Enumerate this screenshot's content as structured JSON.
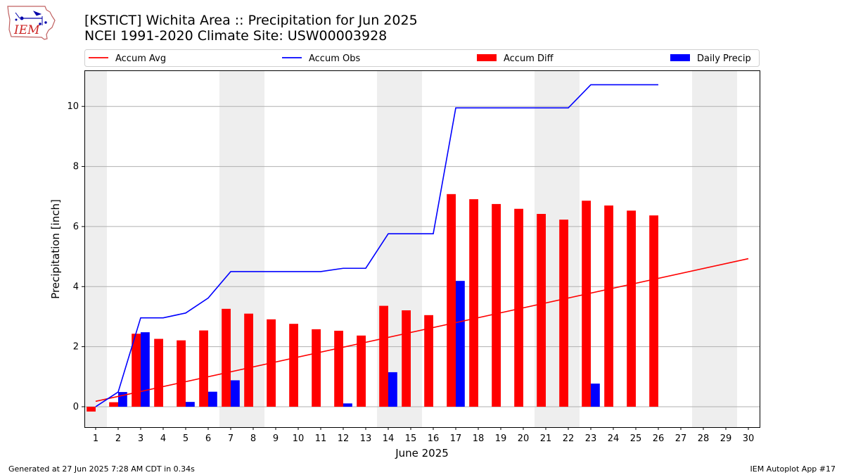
{
  "header": {
    "title_line1": "[KSTICT] Wichita Area :: Precipitation for Jun 2025",
    "title_line2": "NCEI 1991-2020 Climate Site: USW00003928"
  },
  "logo": {
    "text": "IEM",
    "icon": "iem-iowa-logo-icon"
  },
  "footer": {
    "generated": "Generated at 27 Jun 2025 7:28 AM CDT in 0.34s",
    "app": "IEM Autoplot App #17"
  },
  "chart_data": {
    "type": "bar",
    "xlabel": "June 2025",
    "ylabel": "Precipitation [inch]",
    "xlim": [
      0.5,
      30.5
    ],
    "ylim": [
      -0.68,
      11.2
    ],
    "yticks": [
      0,
      2,
      4,
      6,
      8,
      10
    ],
    "xticks": [
      1,
      2,
      3,
      4,
      5,
      6,
      7,
      8,
      9,
      10,
      11,
      12,
      13,
      14,
      15,
      16,
      17,
      18,
      19,
      20,
      21,
      22,
      23,
      24,
      25,
      26,
      27,
      28,
      29,
      30
    ],
    "grid": "horizontal",
    "legend_position": "top",
    "weekend_shading": [
      [
        0.5,
        1.5
      ],
      [
        6.5,
        8.5
      ],
      [
        13.5,
        15.5
      ],
      [
        20.5,
        22.5
      ],
      [
        27.5,
        29.5
      ]
    ],
    "series": [
      {
        "name": "Accum Avg",
        "kind": "line",
        "color": "#ff0000",
        "x": [
          1,
          30
        ],
        "values": [
          0.18,
          4.93
        ]
      },
      {
        "name": "Accum Obs",
        "kind": "line",
        "color": "#0000ff",
        "x": [
          1,
          2,
          3,
          4,
          5,
          6,
          7,
          8,
          9,
          10,
          11,
          12,
          13,
          14,
          15,
          16,
          17,
          18,
          19,
          20,
          21,
          22,
          23,
          24,
          25,
          26
        ],
        "values": [
          0.0,
          0.49,
          2.96,
          2.96,
          3.12,
          3.62,
          4.5,
          4.5,
          4.5,
          4.5,
          4.5,
          4.61,
          4.61,
          5.76,
          5.76,
          5.76,
          9.95,
          9.95,
          9.95,
          9.95,
          9.95,
          9.95,
          10.72,
          10.72,
          10.72,
          10.72
        ]
      },
      {
        "name": "Accum Diff",
        "kind": "bar",
        "color": "#ff0000",
        "offset": -0.2,
        "x": [
          1,
          2,
          3,
          4,
          5,
          6,
          7,
          8,
          9,
          10,
          11,
          12,
          13,
          14,
          15,
          16,
          17,
          18,
          19,
          20,
          21,
          22,
          23,
          24,
          25,
          26
        ],
        "values": [
          -0.16,
          0.15,
          2.43,
          2.26,
          2.21,
          2.54,
          3.26,
          3.1,
          2.91,
          2.76,
          2.58,
          2.53,
          2.37,
          3.36,
          3.21,
          3.05,
          7.08,
          6.91,
          6.75,
          6.59,
          6.42,
          6.23,
          6.86,
          6.7,
          6.53,
          6.37
        ]
      },
      {
        "name": "Daily Precip",
        "kind": "bar",
        "color": "#0000ff",
        "offset": 0.2,
        "x": [
          2,
          3,
          5,
          6,
          7,
          12,
          14,
          17,
          23
        ],
        "values": [
          0.49,
          2.48,
          0.16,
          0.5,
          0.88,
          0.11,
          1.15,
          4.19,
          0.77
        ]
      }
    ]
  }
}
